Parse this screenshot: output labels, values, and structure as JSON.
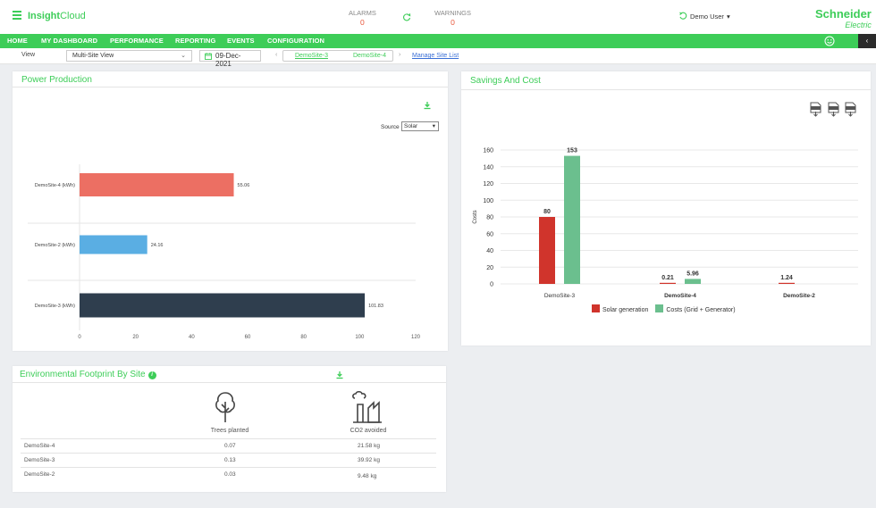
{
  "header": {
    "brand_bold": "Insight",
    "brand_thin": "Cloud",
    "alarms_label": "ALARMS",
    "alarms_count": "0",
    "warnings_label": "WARNINGS",
    "warnings_count": "0",
    "user_name": "Demo User",
    "logo_main": "Schneider",
    "logo_sub": "Electric"
  },
  "nav": {
    "items": [
      "HOME",
      "MY DASHBOARD",
      "PERFORMANCE",
      "REPORTING",
      "EVENTS",
      "CONFIGURATION"
    ],
    "collapse_glyph": "‹"
  },
  "toolbar": {
    "view_label": "View",
    "view_value": "Multi-Site View",
    "date_value": "09-Dec-2021",
    "prev_glyph": "‹",
    "next_glyph": "›",
    "site_tabs": [
      "DemoSite-3",
      "DemoSite-4"
    ],
    "manage_link": "Manage Site List"
  },
  "power_production": {
    "title": "Power Production",
    "source_label": "Source",
    "source_value": "Solar"
  },
  "savings": {
    "title": "Savings And Cost"
  },
  "env": {
    "title": "Environmental Footprint By Site",
    "info_glyph": "i",
    "col_trees": "Trees planted",
    "col_co2": "CO2 avoided",
    "rows": [
      {
        "site": "DemoSite-4",
        "trees": "0.07",
        "co2": "21.58 kg"
      },
      {
        "site": "DemoSite-3",
        "trees": "0.13",
        "co2": "39.92 kg"
      },
      {
        "site": "DemoSite-2",
        "trees": "0.03",
        "co2": "9.48 kg"
      }
    ]
  },
  "colors": {
    "accent": "#3dcd58",
    "bar_demosite4": "#ec6f63",
    "bar_demosite2": "#5aaee3",
    "bar_demosite3": "#2f3e4e",
    "solar": "#d0342c",
    "costs": "#6bbf8e"
  },
  "chart_data": [
    {
      "type": "bar",
      "orientation": "horizontal",
      "categories": [
        "DemoSite-4 (kWh)",
        "DemoSite-2 (kWh)",
        "DemoSite-3 (kWh)"
      ],
      "values": [
        55.06,
        24.16,
        101.83
      ],
      "value_labels": [
        "55.06",
        "24.16",
        "101.83"
      ],
      "xlim": [
        0,
        120
      ],
      "xticks": [
        0,
        20,
        40,
        60,
        80,
        100,
        120
      ],
      "grid": true
    },
    {
      "type": "bar",
      "categories": [
        "DemoSite-3",
        "DemoSite-4",
        "DemoSite-2"
      ],
      "ylabel": "Costs",
      "ylim": [
        0,
        160
      ],
      "yticks": [
        0,
        20,
        40,
        60,
        80,
        100,
        120,
        140,
        160
      ],
      "series": [
        {
          "name": "Solar generation",
          "values": [
            80,
            0.21,
            1.24
          ],
          "labels": [
            "80",
            "0.21",
            "1.24"
          ]
        },
        {
          "name": "Costs (Grid + Generator)",
          "values": [
            153,
            5.96,
            null
          ],
          "labels": [
            "153",
            "5.96",
            ""
          ]
        }
      ],
      "legend": "bottom",
      "grid": true
    }
  ]
}
